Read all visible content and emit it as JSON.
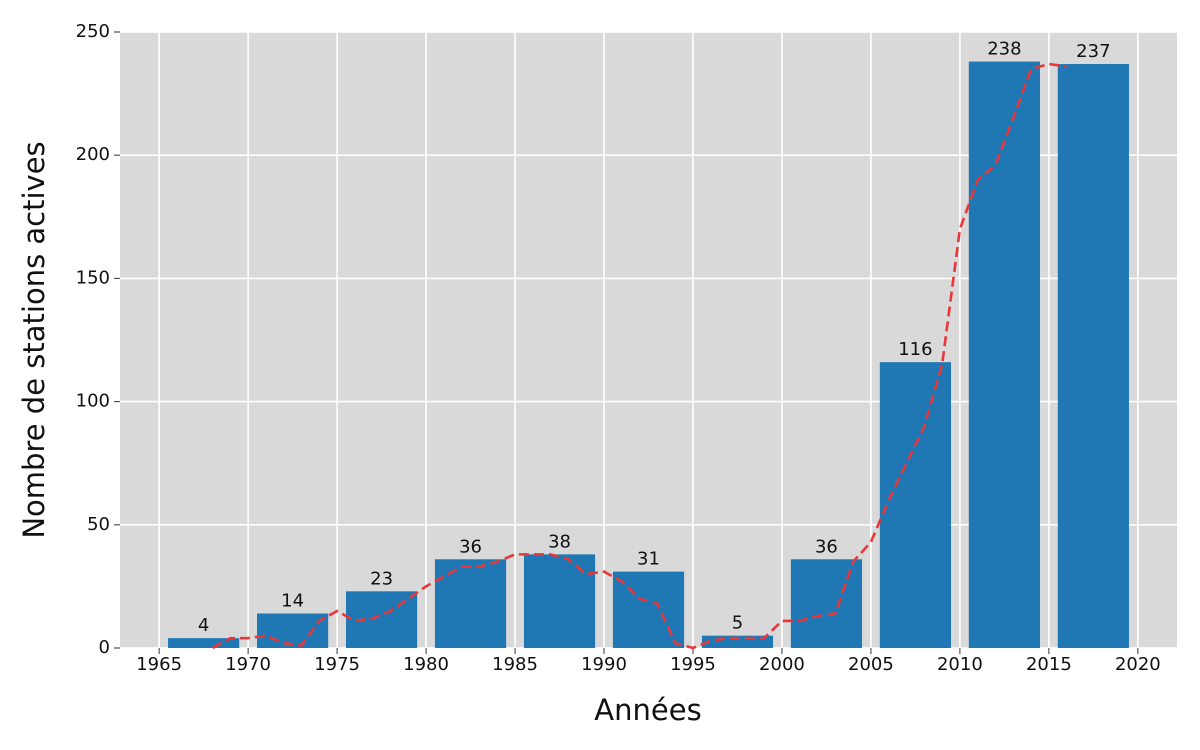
{
  "chart_data": {
    "type": "bar",
    "xlabel": "Années",
    "ylabel": "Nombre de stations actives",
    "x": [
      1967.5,
      1972.5,
      1977.5,
      1982.5,
      1987.5,
      1992.5,
      1997.5,
      2002.5,
      2007.5,
      2012.5,
      2017.5
    ],
    "values": [
      4,
      14,
      23,
      36,
      38,
      31,
      5,
      36,
      116,
      238,
      237
    ],
    "color": "#1f77b4",
    "line": {
      "type": "line",
      "color": "#e8373a",
      "style": "dashed",
      "x": [
        1968,
        1969,
        1970,
        1971,
        1972,
        1973,
        1974,
        1975,
        1976,
        1977,
        1978,
        1979,
        1980,
        1981,
        1982,
        1983,
        1984,
        1985,
        1986,
        1987,
        1988,
        1989,
        1990,
        1991,
        1992,
        1993,
        1994,
        1995,
        1996,
        1997,
        1998,
        1999,
        2000,
        2001,
        2002,
        2003,
        2004,
        2005,
        2006,
        2007,
        2008,
        2009,
        2010,
        2011,
        2012,
        2013,
        2014,
        2015,
        2016
      ],
      "values": [
        0,
        4,
        4,
        5,
        2,
        1,
        11,
        15,
        11,
        12,
        15,
        20,
        25,
        29,
        33,
        33,
        35,
        38,
        38,
        38,
        36,
        30,
        31,
        27,
        20,
        18,
        2,
        0,
        3,
        4,
        4,
        4,
        11,
        11,
        13,
        14,
        35,
        43,
        60,
        75,
        90,
        115,
        170,
        190,
        196,
        215,
        235,
        237,
        236
      ]
    },
    "xlim": [
      1962.8,
      2022.2
    ],
    "xticks": [
      1965,
      1970,
      1975,
      1980,
      1985,
      1990,
      1995,
      2000,
      2005,
      2010,
      2015,
      2020
    ],
    "ylim": [
      0,
      250
    ],
    "yticks": [
      0,
      50,
      100,
      150,
      200,
      250
    ],
    "grid": true
  }
}
